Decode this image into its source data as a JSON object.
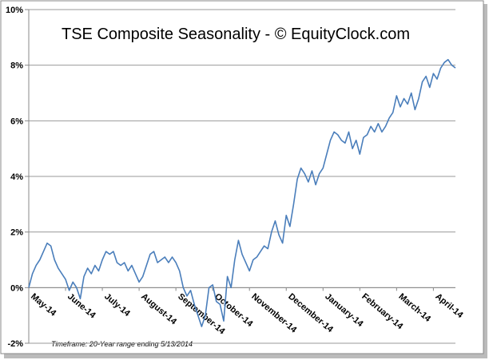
{
  "chart_data": {
    "type": "line",
    "title": "TSE Composite Seasonality - © EquityClock.com",
    "footnote": "Timeframe: 20-Year range ending 5/13/2014",
    "categories": [
      "May-14",
      null,
      null,
      null,
      null,
      null,
      null,
      null,
      null,
      null,
      "June-14",
      null,
      null,
      null,
      null,
      null,
      null,
      null,
      null,
      null,
      "July-14",
      null,
      null,
      null,
      null,
      null,
      null,
      null,
      null,
      null,
      "August-14",
      null,
      null,
      null,
      null,
      null,
      null,
      null,
      null,
      null,
      "September-14",
      null,
      null,
      null,
      null,
      null,
      null,
      null,
      null,
      null,
      "October-14",
      null,
      null,
      null,
      null,
      null,
      null,
      null,
      null,
      null,
      "November-14",
      null,
      null,
      null,
      null,
      null,
      null,
      null,
      null,
      null,
      "December-14",
      null,
      null,
      null,
      null,
      null,
      null,
      null,
      null,
      null,
      "January-14",
      null,
      null,
      null,
      null,
      null,
      null,
      null,
      null,
      null,
      "February-14",
      null,
      null,
      null,
      null,
      null,
      null,
      null,
      null,
      null,
      "March-14",
      null,
      null,
      null,
      null,
      null,
      null,
      null,
      null,
      null,
      "April-14",
      null,
      null,
      null,
      null,
      null,
      null
    ],
    "series": [
      {
        "name": "TSE Composite",
        "color": "#4a7ebb",
        "values": [
          0.0,
          0.5,
          0.8,
          1.0,
          1.3,
          1.6,
          1.5,
          1.0,
          0.7,
          0.5,
          0.3,
          -0.1,
          0.2,
          0.0,
          -0.4,
          0.4,
          0.7,
          0.5,
          0.8,
          0.6,
          1.0,
          1.3,
          1.2,
          1.3,
          0.9,
          0.8,
          0.9,
          0.6,
          0.8,
          0.5,
          0.2,
          0.4,
          0.8,
          1.2,
          1.3,
          0.9,
          1.0,
          1.1,
          0.9,
          1.1,
          0.9,
          0.6,
          0.0,
          -0.3,
          -0.1,
          -0.6,
          -1.0,
          -1.4,
          -1.0,
          0.0,
          0.1,
          -0.5,
          -0.6,
          -1.2,
          0.4,
          0.0,
          1.0,
          1.7,
          1.2,
          0.9,
          0.6,
          1.0,
          1.1,
          1.3,
          1.5,
          1.4,
          2.0,
          2.4,
          1.9,
          1.6,
          2.6,
          2.2,
          3.0,
          3.9,
          4.3,
          4.1,
          3.8,
          4.2,
          3.7,
          4.1,
          4.3,
          4.8,
          5.3,
          5.6,
          5.5,
          5.3,
          5.2,
          5.6,
          5.0,
          5.3,
          4.8,
          5.4,
          5.5,
          5.8,
          5.6,
          5.9,
          5.6,
          5.8,
          6.1,
          6.3,
          6.9,
          6.5,
          6.8,
          6.6,
          7.0,
          6.4,
          6.8,
          7.4,
          7.6,
          7.2,
          7.7,
          7.5,
          7.9,
          8.1,
          8.2,
          8.0,
          7.9
        ]
      }
    ],
    "ylim": [
      -2,
      10
    ],
    "yticks": [
      {
        "value": -2,
        "label": "-2%"
      },
      {
        "value": 0,
        "label": "0%"
      },
      {
        "value": 2,
        "label": "2%"
      },
      {
        "value": 4,
        "label": "4%"
      },
      {
        "value": 6,
        "label": "6%"
      },
      {
        "value": 8,
        "label": "8%"
      },
      {
        "value": 10,
        "label": "10%"
      }
    ],
    "grid": true
  }
}
